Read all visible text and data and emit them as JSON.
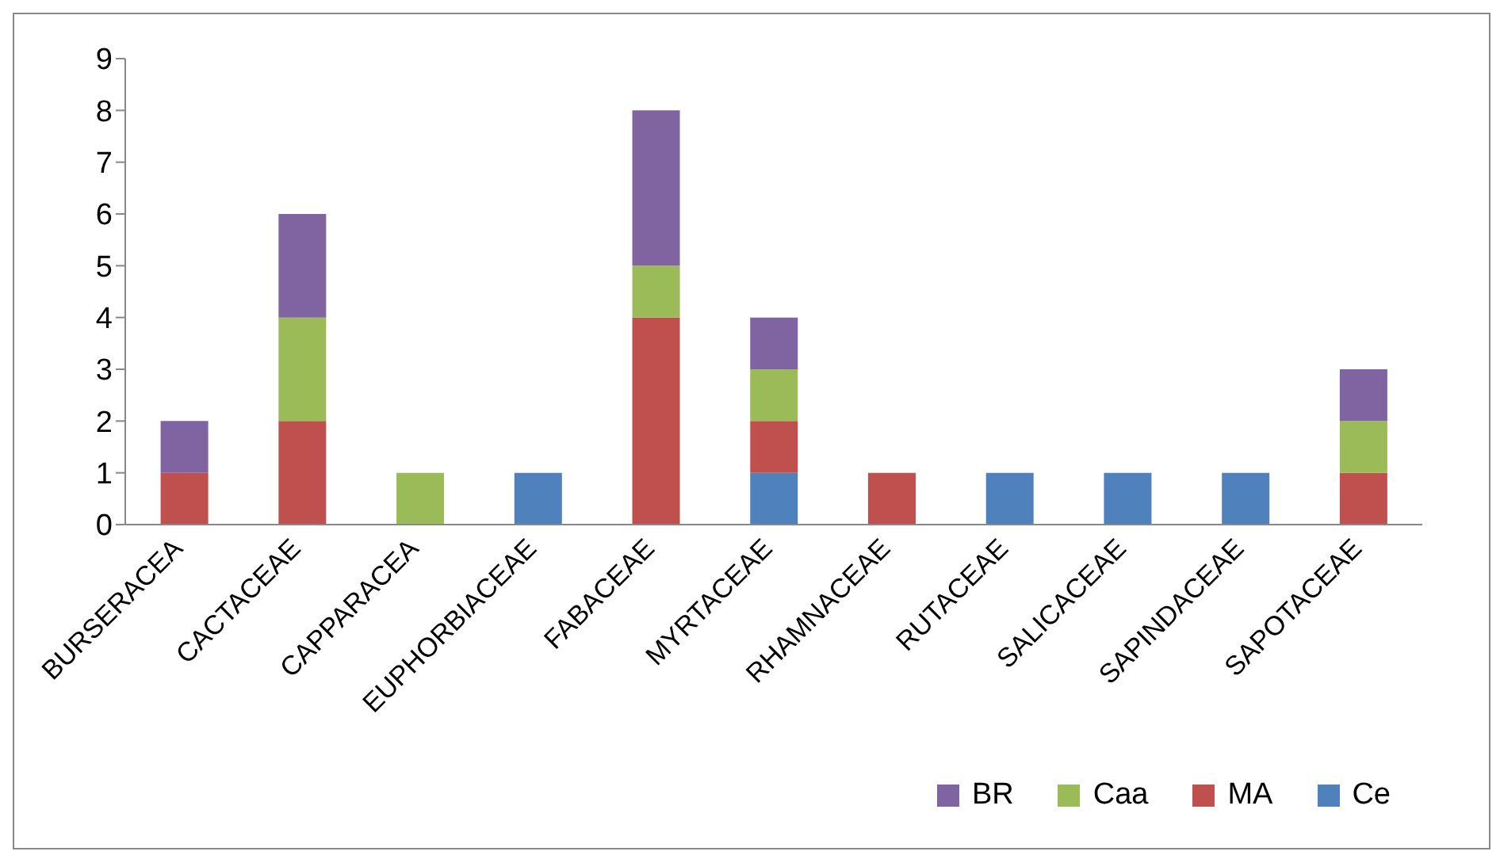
{
  "chart_data": {
    "type": "bar",
    "stacked": true,
    "categories": [
      "BURSERACEA",
      "CACTACEAE",
      "CAPPARACEA",
      "EUPHORBIACEAE",
      "FABACEAE",
      "MYRTACEAE",
      "RHAMNACEAE",
      "RUTACEAE",
      "SALICACEAE",
      "SAPINDACEAE",
      "SAPOTACEAE"
    ],
    "series": [
      {
        "name": "Ce",
        "color": "#4f81bd",
        "values": [
          0,
          0,
          0,
          1,
          0,
          1,
          0,
          1,
          1,
          1,
          0
        ]
      },
      {
        "name": "MA",
        "color": "#c0504d",
        "values": [
          1,
          2,
          0,
          0,
          4,
          1,
          1,
          0,
          0,
          0,
          1
        ]
      },
      {
        "name": "Caa",
        "color": "#9bbb59",
        "values": [
          0,
          2,
          1,
          0,
          1,
          1,
          0,
          0,
          0,
          0,
          1
        ]
      },
      {
        "name": "BR",
        "color": "#8064a2",
        "values": [
          1,
          2,
          0,
          0,
          3,
          1,
          0,
          0,
          0,
          0,
          1
        ]
      }
    ],
    "ylim": [
      0,
      9
    ],
    "yticks": [
      0,
      1,
      2,
      3,
      4,
      5,
      6,
      7,
      8,
      9
    ],
    "grid": false,
    "legend": "bottom right"
  }
}
